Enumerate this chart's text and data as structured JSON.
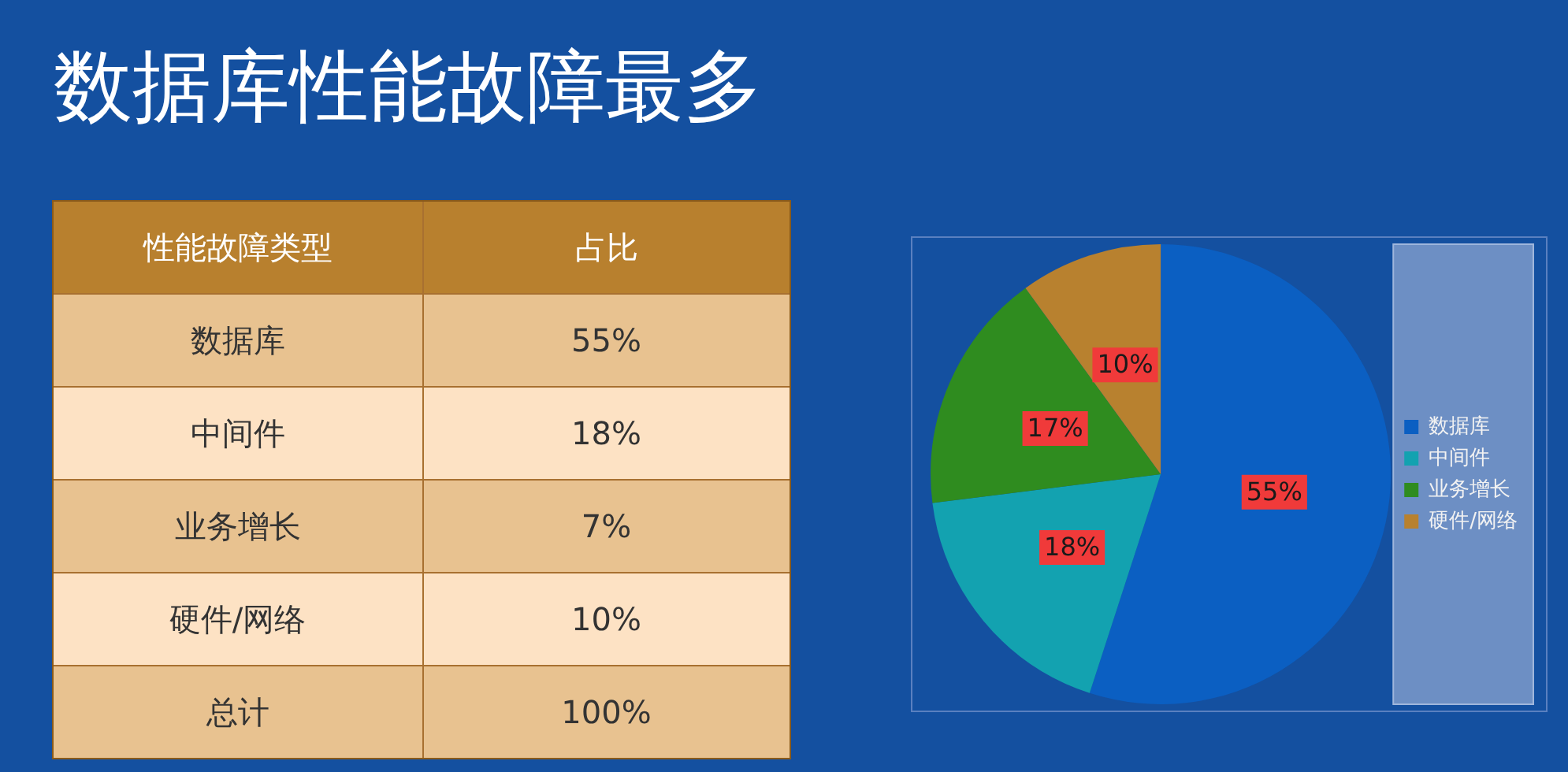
{
  "chart_data": [
    {
      "type": "other",
      "title": "数据库性能故障最多",
      "annotations": [
        "性能故障类型",
        "占比",
        "数据库",
        "55%",
        "中间件",
        "18%",
        "业务增长",
        "7%",
        "硬件/网络",
        "10%",
        "总计",
        "100%"
      ]
    },
    {
      "type": "pie",
      "categories": [
        "数据库",
        "中间件",
        "业务增长",
        "硬件/网络"
      ],
      "values": [
        55,
        18,
        17,
        10
      ],
      "colors": [
        "#0b5fc2",
        "#13a2b0",
        "#2f8c1f",
        "#b8812f"
      ],
      "value_labels": [
        "55%",
        "18%",
        "17%",
        "10%"
      ],
      "legend": "right"
    }
  ]
}
